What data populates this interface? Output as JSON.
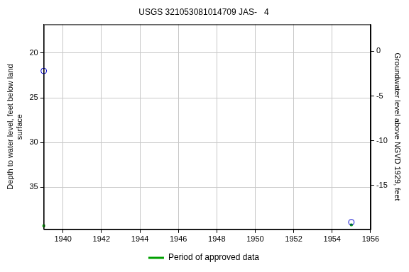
{
  "chart_data": {
    "type": "scatter",
    "title": "USGS 321053081014709 JAS-   4",
    "ylabel": [
      "Depth to water level, feet below land",
      "surface"
    ],
    "y2label": "Groundwater level above NGVD 1929, feet",
    "series": [
      {
        "color": "#0000cc",
        "marker": "circle_open",
        "x": [
          1939,
          1955
        ],
        "values": [
          22.0,
          38.9
        ]
      },
      {
        "name": "Period of approved data",
        "color": "#00a000",
        "marker": "square",
        "x": [
          1939,
          1955
        ],
        "values": [
          39.3,
          39.2
        ]
      }
    ],
    "xlim": [
      1939,
      1956
    ],
    "xticks": [
      1940,
      1942,
      1944,
      1946,
      1948,
      1950,
      1952,
      1954,
      1956
    ],
    "ylim": [
      39.7,
      16.8
    ],
    "yticks": [
      20,
      25,
      30,
      35
    ],
    "y2lim": [
      -19.9,
      3.0
    ],
    "y2ticks": [
      0,
      -5,
      -10,
      -15
    ],
    "grid": true,
    "legend": "bottom"
  }
}
